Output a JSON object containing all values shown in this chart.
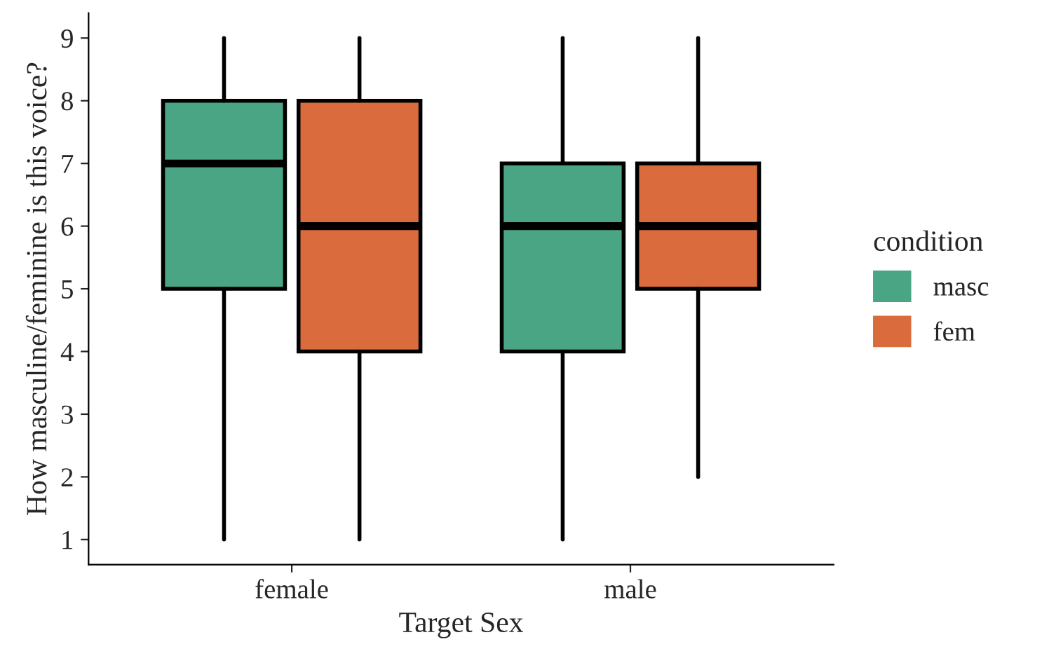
{
  "chart_data": {
    "type": "box",
    "xlabel": "Target Sex",
    "ylabel": "How masculine/feminine is this voice?",
    "legend_title": "condition",
    "legend": "right",
    "grid": false,
    "categories": [
      "female",
      "male"
    ],
    "ylim": [
      0.6,
      9.4
    ],
    "yticks": [
      1,
      2,
      3,
      4,
      5,
      6,
      7,
      8,
      9
    ],
    "series": [
      {
        "name": "masc",
        "color": "#4aa584",
        "boxes": [
          {
            "low": 1,
            "q1": 5,
            "median": 7,
            "q3": 8,
            "high": 9
          },
          {
            "low": 1,
            "q1": 4,
            "median": 6,
            "q3": 7,
            "high": 9
          }
        ]
      },
      {
        "name": "fem",
        "color": "#d96b3c",
        "boxes": [
          {
            "low": 1,
            "q1": 4,
            "median": 6,
            "q3": 8,
            "high": 9
          },
          {
            "low": 2,
            "q1": 5,
            "median": 6,
            "q3": 7,
            "high": 9
          }
        ]
      }
    ]
  }
}
